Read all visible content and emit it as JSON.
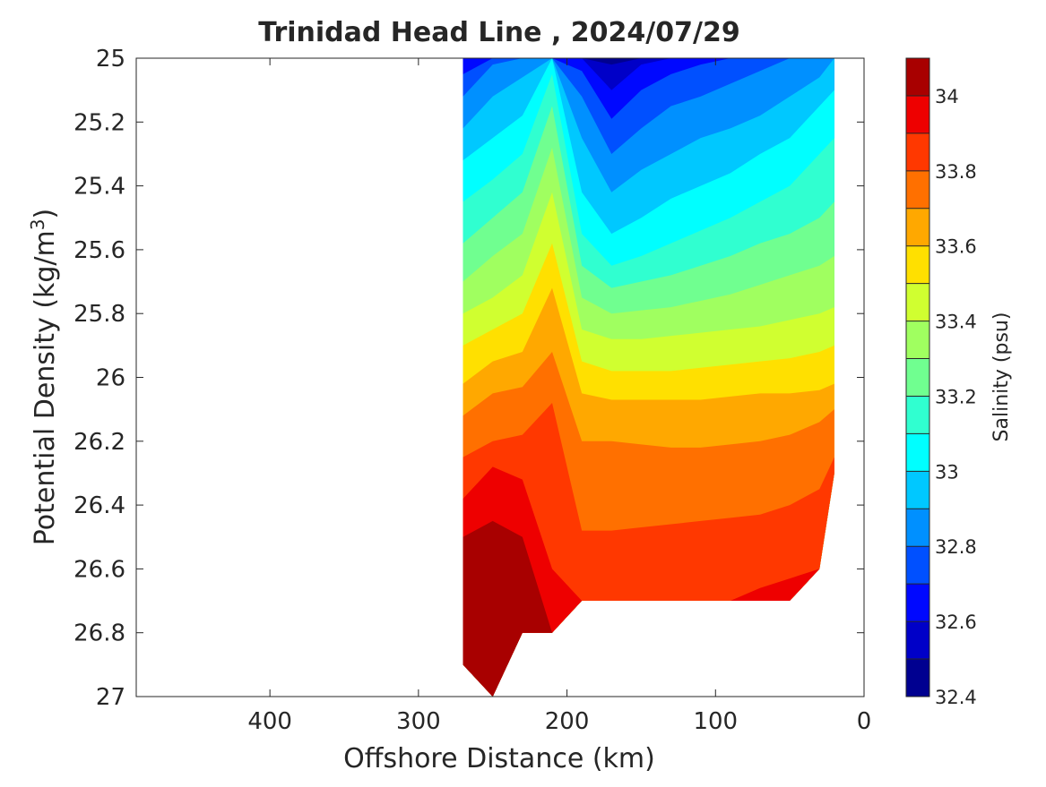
{
  "chart_data": {
    "type": "filled-contour",
    "title": "Trinidad Head Line , 2024/07/29",
    "xlabel": "Offshore Distance (km)",
    "ylabel": "Potential Density (kg/m3)",
    "ylabel_base": "Potential Density (kg/m",
    "ylabel_sup": "3",
    "ylabel_end": ")",
    "xlim": [
      490,
      0
    ],
    "x_reversed": true,
    "ylim": [
      25,
      27
    ],
    "y_reversed": true,
    "x_ticks": [
      400,
      300,
      200,
      100,
      0
    ],
    "y_ticks": [
      25,
      25.2,
      25.4,
      25.6,
      25.8,
      26,
      26.2,
      26.4,
      26.6,
      26.8,
      27
    ],
    "y_tick_labels": [
      "25",
      "25.2",
      "25.4",
      "25.6",
      "25.8",
      "26",
      "26.2",
      "26.4",
      "26.6",
      "26.8",
      "27"
    ],
    "colorbar": {
      "label": "Salinity (psu)",
      "range": [
        32.4,
        34.1
      ],
      "ticks": [
        32.4,
        32.6,
        32.8,
        33,
        33.2,
        33.4,
        33.6,
        33.8,
        34
      ],
      "tick_labels": [
        "32.4",
        "32.6",
        "32.8",
        "33",
        "33.2",
        "33.4",
        "33.6",
        "33.8",
        "34"
      ],
      "levels": [
        32.4,
        32.5,
        32.6,
        32.7,
        32.8,
        32.9,
        33.0,
        33.1,
        33.2,
        33.3,
        33.4,
        33.5,
        33.6,
        33.7,
        33.8,
        33.9,
        34.0,
        34.1
      ],
      "colors": [
        "#000090",
        "#0000c8",
        "#0008ff",
        "#0050ff",
        "#0090ff",
        "#00c8ff",
        "#00ffff",
        "#30ffd0",
        "#70ff90",
        "#a0ff60",
        "#d0ff30",
        "#ffe000",
        "#ffa800",
        "#ff7000",
        "#ff3800",
        "#ee0000",
        "#a80000"
      ]
    },
    "stations_km": [
      270,
      250,
      230,
      210,
      190,
      170,
      150,
      130,
      110,
      90,
      70,
      50,
      30,
      20
    ],
    "bottom_density": [
      26.9,
      27.0,
      26.8,
      26.8,
      26.7,
      26.7,
      26.7,
      26.7,
      26.7,
      26.7,
      26.7,
      26.7,
      26.6,
      26.3
    ],
    "contour_depths": {
      "c32_5": [
        null,
        null,
        null,
        null,
        null,
        25.02,
        null,
        null,
        null,
        null,
        null,
        null,
        null,
        null
      ],
      "c32_6": [
        null,
        null,
        null,
        null,
        null,
        25.1,
        25.02,
        null,
        null,
        null,
        null,
        null,
        null,
        null
      ],
      "c32_7": [
        25.05,
        null,
        null,
        null,
        25.04,
        25.19,
        25.1,
        25.05,
        25.02,
        null,
        null,
        null,
        null,
        null
      ],
      "c32_8": [
        25.12,
        25.02,
        null,
        null,
        25.12,
        25.3,
        25.22,
        25.15,
        25.12,
        25.08,
        25.04,
        25.0,
        null,
        null
      ],
      "c32_9": [
        25.22,
        25.12,
        25.06,
        null,
        25.25,
        25.42,
        25.35,
        25.3,
        25.25,
        25.22,
        25.18,
        25.12,
        25.06,
        null
      ],
      "c33_0": [
        25.32,
        25.25,
        25.18,
        null,
        25.42,
        25.55,
        25.5,
        25.44,
        25.4,
        25.36,
        25.3,
        25.25,
        25.15,
        25.1
      ],
      "c33_1": [
        25.45,
        25.38,
        25.3,
        25.05,
        25.55,
        25.65,
        25.62,
        25.58,
        25.54,
        25.5,
        25.45,
        25.4,
        25.3,
        25.25
      ],
      "c33_2": [
        25.58,
        25.5,
        25.42,
        25.15,
        25.65,
        25.72,
        25.7,
        25.68,
        25.65,
        25.62,
        25.58,
        25.55,
        25.5,
        25.45
      ],
      "c33_3": [
        25.7,
        25.62,
        25.55,
        25.28,
        25.75,
        25.8,
        25.79,
        25.78,
        25.76,
        25.74,
        25.71,
        25.68,
        25.65,
        25.62
      ],
      "c33_4": [
        25.8,
        25.75,
        25.68,
        25.42,
        25.85,
        25.88,
        25.88,
        25.87,
        25.86,
        25.85,
        25.84,
        25.82,
        25.8,
        25.78
      ],
      "c33_5": [
        25.9,
        25.85,
        25.8,
        25.58,
        25.95,
        25.98,
        25.98,
        25.98,
        25.97,
        25.96,
        25.95,
        25.94,
        25.92,
        25.9
      ],
      "c33_6": [
        26.02,
        25.95,
        25.92,
        25.72,
        26.05,
        26.07,
        26.07,
        26.07,
        26.07,
        26.06,
        26.05,
        26.05,
        26.04,
        26.02
      ],
      "c33_7": [
        26.12,
        26.05,
        26.03,
        25.92,
        26.2,
        26.2,
        26.21,
        26.22,
        26.22,
        26.21,
        26.2,
        26.18,
        26.14,
        26.1
      ],
      "c33_8": [
        26.25,
        26.2,
        26.18,
        26.08,
        26.48,
        26.48,
        26.47,
        26.46,
        26.45,
        26.44,
        26.43,
        26.4,
        26.35,
        26.25
      ],
      "c33_9": [
        26.38,
        26.28,
        26.32,
        26.6,
        26.7,
        26.7,
        26.7,
        26.7,
        26.7,
        26.7,
        26.66,
        26.63,
        26.6,
        26.3
      ],
      "c34_0": [
        26.5,
        26.45,
        26.5,
        26.8,
        26.7,
        26.7,
        26.7,
        26.7,
        26.7,
        26.7,
        26.7,
        26.7,
        26.6,
        26.3
      ],
      "c34_1": [
        26.75,
        26.72,
        26.7,
        26.8,
        26.7,
        26.7,
        26.7,
        26.7,
        26.7,
        26.7,
        26.7,
        26.7,
        26.6,
        26.3
      ]
    }
  }
}
